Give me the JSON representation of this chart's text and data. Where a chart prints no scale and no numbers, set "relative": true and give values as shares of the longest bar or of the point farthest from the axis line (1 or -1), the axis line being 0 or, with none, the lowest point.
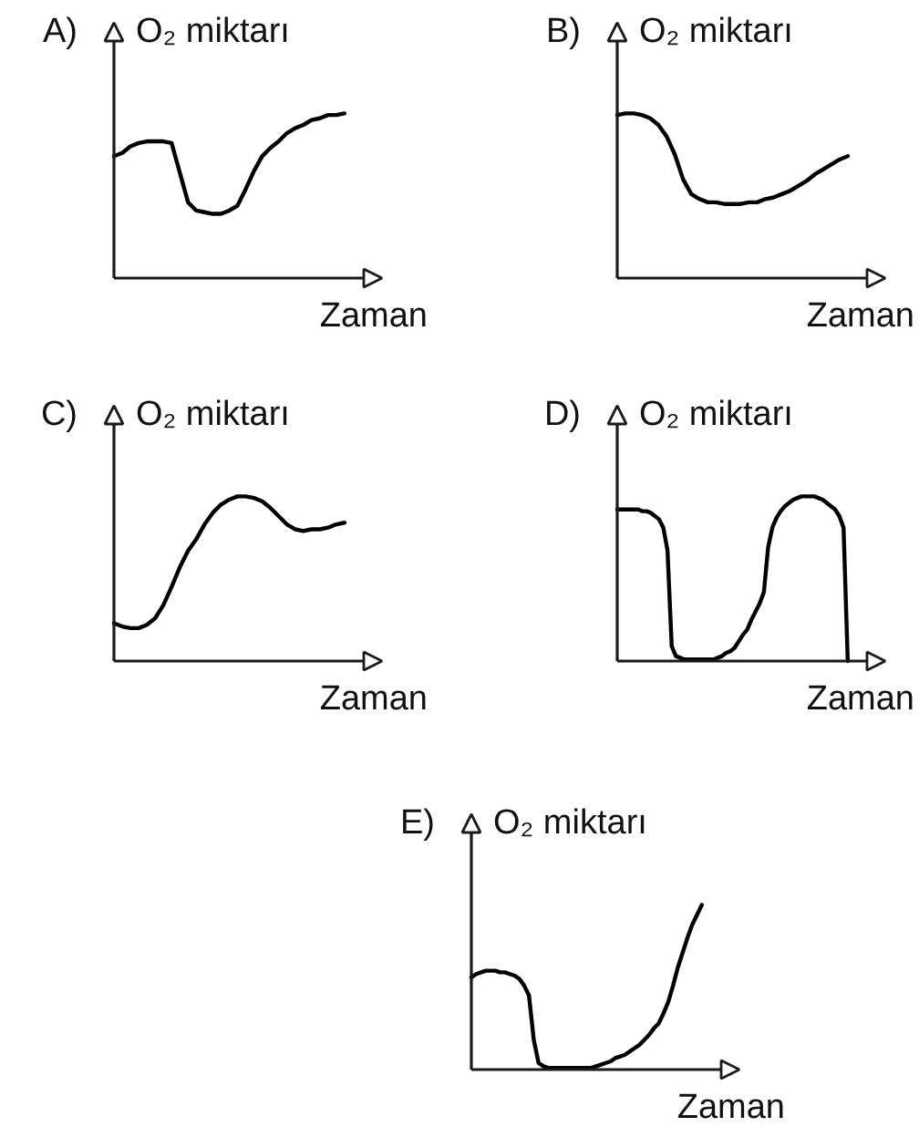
{
  "chart_data": [
    {
      "type": "line",
      "title": "A)",
      "ylabel": "O₂ miktarı",
      "xlabel": "Zaman",
      "relative": true,
      "categories": [
        null,
        null,
        null,
        null,
        null,
        null,
        null,
        null,
        null,
        null,
        null,
        null,
        null,
        null,
        null,
        null,
        null,
        null,
        null,
        null,
        null,
        null,
        null,
        null,
        null,
        null,
        null,
        null,
        null
      ],
      "series": [
        {
          "color": "#000000",
          "values": [
            0.74,
            0.76,
            0.8,
            0.82,
            0.83,
            0.83,
            0.83,
            0.82,
            0.64,
            0.46,
            0.41,
            0.4,
            0.39,
            0.39,
            0.41,
            0.44,
            0.54,
            0.65,
            0.74,
            0.79,
            0.83,
            0.88,
            0.91,
            0.93,
            0.96,
            0.97,
            0.99,
            0.99,
            1
          ]
        }
      ]
    },
    {
      "type": "line",
      "title": "B)",
      "ylabel": "O₂ miktarı",
      "xlabel": "Zaman",
      "relative": true,
      "categories": [
        null,
        null,
        null,
        null,
        null,
        null,
        null,
        null,
        null,
        null,
        null,
        null,
        null,
        null,
        null,
        null,
        null,
        null,
        null,
        null,
        null,
        null,
        null,
        null,
        null,
        null,
        null,
        null,
        null
      ],
      "series": [
        {
          "color": "#000000",
          "values": [
            0.99,
            1,
            1,
            0.99,
            0.97,
            0.93,
            0.86,
            0.75,
            0.6,
            0.51,
            0.48,
            0.46,
            0.46,
            0.45,
            0.45,
            0.45,
            0.46,
            0.46,
            0.48,
            0.49,
            0.51,
            0.53,
            0.56,
            0.59,
            0.63,
            0.66,
            0.69,
            0.72,
            0.74
          ]
        }
      ]
    },
    {
      "type": "line",
      "title": "C)",
      "ylabel": "O₂ miktarı",
      "xlabel": "Zaman",
      "relative": true,
      "categories": [
        null,
        null,
        null,
        null,
        null,
        null,
        null,
        null,
        null,
        null,
        null,
        null,
        null,
        null,
        null,
        null,
        null,
        null,
        null,
        null,
        null,
        null,
        null,
        null,
        null,
        null,
        null,
        null,
        null
      ],
      "series": [
        {
          "color": "#000000",
          "values": [
            0.23,
            0.21,
            0.2,
            0.2,
            0.22,
            0.26,
            0.34,
            0.45,
            0.57,
            0.67,
            0.74,
            0.83,
            0.9,
            0.95,
            0.98,
            1,
            1,
            0.99,
            0.97,
            0.93,
            0.88,
            0.83,
            0.8,
            0.79,
            0.8,
            0.8,
            0.81,
            0.83,
            0.84
          ]
        }
      ]
    },
    {
      "type": "line",
      "title": "D)",
      "ylabel": "O₂ miktarı",
      "xlabel": "Zaman",
      "relative": true,
      "categories": [
        null,
        null,
        null,
        null,
        null,
        null,
        null,
        null,
        null,
        null,
        null,
        null,
        null,
        null,
        null,
        null,
        null,
        null,
        null,
        null,
        null,
        null,
        null,
        null,
        null,
        null,
        null,
        null,
        null,
        null,
        null,
        null,
        null,
        null,
        null,
        null,
        null,
        null,
        null,
        null,
        null,
        null,
        null,
        null,
        null,
        null,
        null,
        null,
        null,
        null,
        null,
        null,
        null,
        null,
        null,
        null
      ],
      "series": [
        {
          "color": "#000000",
          "values": [
            0.92,
            0.92,
            0.92,
            0.92,
            0.92,
            0.92,
            0.91,
            0.91,
            0.9,
            0.88,
            0.86,
            0.81,
            0.67,
            0.09,
            0.03,
            0.02,
            0.01,
            0.01,
            0.01,
            0.01,
            0.01,
            0.01,
            0.01,
            0.01,
            0.02,
            0.03,
            0.05,
            0.06,
            0.08,
            0.12,
            0.16,
            0.19,
            0.25,
            0.3,
            0.35,
            0.42,
            0.69,
            0.81,
            0.87,
            0.91,
            0.94,
            0.96,
            0.98,
            0.99,
            1,
            1,
            1,
            1,
            0.99,
            0.98,
            0.96,
            0.94,
            0.92,
            0.88,
            0.81,
            0
          ]
        }
      ]
    },
    {
      "type": "line",
      "title": "E)",
      "ylabel": "O₂ miktarı",
      "xlabel": "Zaman",
      "relative": true,
      "categories": [
        null,
        null,
        null,
        null,
        null,
        null,
        null,
        null,
        null,
        null,
        null,
        null,
        null,
        null,
        null,
        null,
        null,
        null,
        null,
        null,
        null,
        null,
        null,
        null,
        null,
        null,
        null,
        null,
        null,
        null,
        null,
        null,
        null,
        null,
        null,
        null,
        null,
        null,
        null,
        null,
        null,
        null,
        null,
        null,
        null,
        null,
        null,
        null,
        null
      ],
      "series": [
        {
          "color": "#000000",
          "values": [
            0.56,
            0.58,
            0.59,
            0.6,
            0.6,
            0.6,
            0.59,
            0.59,
            0.58,
            0.57,
            0.55,
            0.51,
            0.45,
            0.18,
            0.04,
            0.02,
            0.01,
            0.01,
            0.01,
            0.01,
            0.01,
            0.01,
            0.01,
            0.01,
            0.01,
            0.01,
            0.02,
            0.03,
            0.04,
            0.05,
            0.07,
            0.08,
            0.09,
            0.11,
            0.13,
            0.15,
            0.18,
            0.21,
            0.25,
            0.28,
            0.34,
            0.41,
            0.51,
            0.62,
            0.71,
            0.8,
            0.88,
            0.94,
            1
          ]
        }
      ]
    }
  ]
}
